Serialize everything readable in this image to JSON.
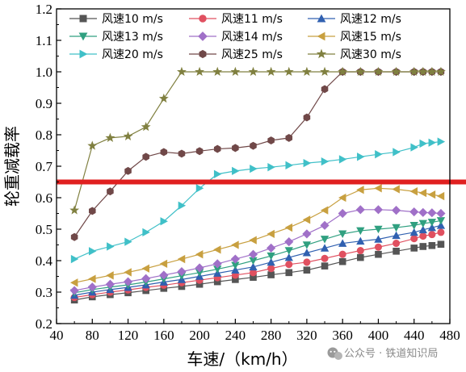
{
  "chart_data": {
    "type": "line",
    "xlabel": "车速/（km/h）",
    "ylabel": "轮重减载率",
    "xlim": [
      40,
      480
    ],
    "ylim": [
      0.2,
      1.2
    ],
    "xticks": [
      40,
      80,
      120,
      160,
      200,
      240,
      280,
      320,
      360,
      400,
      440,
      480
    ],
    "xticks_minor": [
      60,
      100,
      140,
      180,
      220,
      260,
      300,
      340,
      380,
      420,
      460
    ],
    "yticks": [
      0.2,
      0.3,
      0.4,
      0.5,
      0.6,
      0.7,
      0.8,
      0.9,
      1.0,
      1.1,
      1.2
    ],
    "ytick_labels": [
      "0.2",
      "0.3",
      "0.4",
      "0.5",
      "0.6",
      "0.7",
      "0.8",
      "0.9",
      "1.0",
      "1.1",
      "1.2"
    ],
    "grid": false,
    "legend_position": "top",
    "reference_line": {
      "y": 0.65,
      "color": "#e02020"
    },
    "x": [
      60,
      80,
      100,
      120,
      140,
      160,
      180,
      200,
      220,
      240,
      260,
      280,
      300,
      320,
      340,
      360,
      380,
      400,
      420,
      440,
      450,
      460,
      470
    ],
    "series": [
      {
        "name": "风速10 m/s",
        "color": "#555555",
        "marker": "square",
        "values": [
          0.275,
          0.285,
          0.292,
          0.298,
          0.305,
          0.312,
          0.318,
          0.325,
          0.333,
          0.34,
          0.347,
          0.355,
          0.362,
          0.37,
          0.383,
          0.397,
          0.41,
          0.42,
          0.43,
          0.44,
          0.445,
          0.448,
          0.452
        ]
      },
      {
        "name": "风速11 m/s",
        "color": "#e05060",
        "marker": "circle",
        "values": [
          0.283,
          0.292,
          0.3,
          0.307,
          0.315,
          0.322,
          0.33,
          0.338,
          0.346,
          0.354,
          0.362,
          0.375,
          0.388,
          0.395,
          0.407,
          0.42,
          0.432,
          0.443,
          0.455,
          0.47,
          0.478,
          0.483,
          0.49
        ]
      },
      {
        "name": "风速12 m/s",
        "color": "#3060b0",
        "marker": "triangle-up",
        "values": [
          0.29,
          0.3,
          0.308,
          0.315,
          0.323,
          0.332,
          0.34,
          0.35,
          0.36,
          0.37,
          0.38,
          0.395,
          0.41,
          0.425,
          0.44,
          0.455,
          0.462,
          0.468,
          0.48,
          0.49,
          0.498,
          0.505,
          0.512
        ]
      },
      {
        "name": "风速13 m/s",
        "color": "#30a080",
        "marker": "triangle-down",
        "values": [
          0.298,
          0.308,
          0.316,
          0.323,
          0.332,
          0.342,
          0.352,
          0.362,
          0.373,
          0.385,
          0.4,
          0.415,
          0.432,
          0.45,
          0.468,
          0.485,
          0.495,
          0.5,
          0.505,
          0.512,
          0.518,
          0.522,
          0.527
        ]
      },
      {
        "name": "风速14 m/s",
        "color": "#a070c8",
        "marker": "diamond",
        "values": [
          0.305,
          0.316,
          0.325,
          0.333,
          0.343,
          0.354,
          0.365,
          0.377,
          0.39,
          0.405,
          0.42,
          0.44,
          0.46,
          0.485,
          0.512,
          0.55,
          0.562,
          0.562,
          0.56,
          0.555,
          0.553,
          0.552,
          0.55
        ]
      },
      {
        "name": "风速15 m/s",
        "color": "#c8a040",
        "marker": "triangle-left",
        "values": [
          0.33,
          0.342,
          0.353,
          0.363,
          0.375,
          0.39,
          0.405,
          0.42,
          0.435,
          0.45,
          0.465,
          0.485,
          0.505,
          0.53,
          0.56,
          0.6,
          0.625,
          0.63,
          0.627,
          0.62,
          0.615,
          0.61,
          0.605
        ]
      },
      {
        "name": "风速20 m/s",
        "color": "#40c0c8",
        "marker": "triangle-right",
        "values": [
          0.405,
          0.43,
          0.445,
          0.46,
          0.49,
          0.525,
          0.575,
          0.63,
          0.675,
          0.685,
          0.692,
          0.697,
          0.703,
          0.71,
          0.715,
          0.722,
          0.73,
          0.738,
          0.745,
          0.76,
          0.772,
          0.775,
          0.778
        ]
      },
      {
        "name": "风速25 m/s",
        "color": "#704848",
        "marker": "hexagon",
        "values": [
          0.475,
          0.558,
          0.62,
          0.685,
          0.73,
          0.745,
          0.74,
          0.748,
          0.755,
          0.758,
          0.765,
          0.782,
          0.79,
          0.855,
          0.945,
          1.0,
          1.0,
          1.0,
          1.0,
          1.0,
          1.0,
          1.0,
          1.0
        ]
      },
      {
        "name": "风速30 m/s",
        "color": "#808040",
        "marker": "star",
        "values": [
          0.56,
          0.765,
          0.79,
          0.795,
          0.825,
          0.915,
          1.0,
          1.0,
          1.0,
          1.0,
          1.0,
          1.0,
          1.0,
          1.0,
          1.0,
          1.0,
          1.0,
          1.0,
          1.0,
          1.0,
          1.0,
          1.0,
          1.0
        ]
      }
    ]
  },
  "watermark": {
    "text": "公众号 · 铁道知识局",
    "icon": "wechat-icon"
  }
}
